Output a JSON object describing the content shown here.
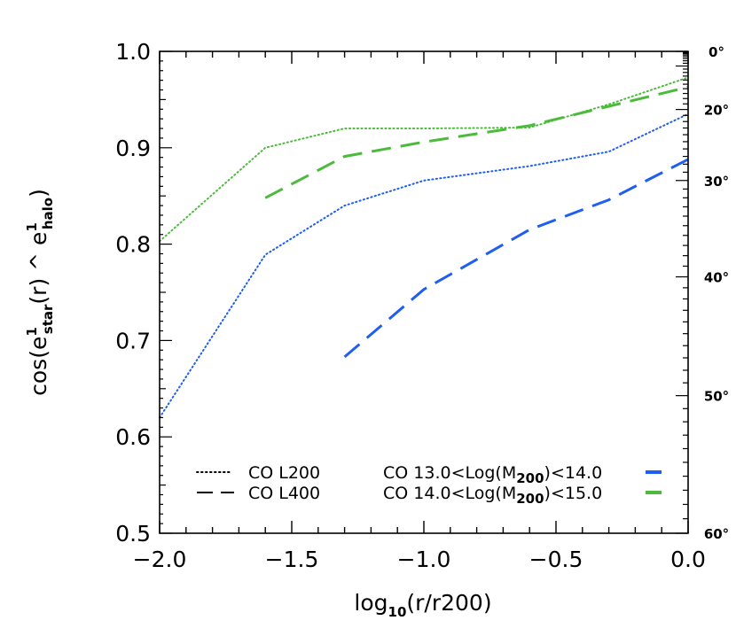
{
  "chart_data": {
    "type": "line",
    "xlabel": {
      "main": "log",
      "sub": "10",
      "rest": "(r/r200)"
    },
    "ylabel": {
      "p1": "cos(e",
      "star_sup": "1",
      "star_sub": "star",
      "p2": "(r) ^ e",
      "halo_sup": "1",
      "halo_sub": "halo",
      "p3": ")"
    },
    "xlim": [
      -2.0,
      0.0
    ],
    "ylim": [
      0.5,
      1.0
    ],
    "x_ticks": [
      -2.0,
      -1.5,
      -1.0,
      -0.5,
      0.0
    ],
    "x_tick_labels": [
      "−2.0",
      "−1.5",
      "−1.0",
      "−0.5",
      "0.0"
    ],
    "y_ticks": [
      0.5,
      0.6,
      0.7,
      0.8,
      0.9,
      1.0
    ],
    "y_tick_labels": [
      "0.5",
      "0.6",
      "0.7",
      "0.8",
      "0.9",
      "1.0"
    ],
    "right_axis_labels": [
      {
        "deg": 0,
        "text": "0°"
      },
      {
        "deg": 20,
        "text": "20°"
      },
      {
        "deg": 30,
        "text": "30°"
      },
      {
        "deg": 40,
        "text": "40°"
      },
      {
        "deg": 50,
        "text": "50°"
      },
      {
        "deg": 60,
        "text": "60°"
      }
    ],
    "colors": {
      "blue": "#1f5ef0",
      "green": "#4cbb3c",
      "black": "#000000"
    },
    "series": [
      {
        "name": "CO L200 13.0<Log(M200)<14.0",
        "color": "#1f5ef0",
        "style": "dotted",
        "x": [
          -2.0,
          -1.6,
          -1.3,
          -1.0,
          -0.6,
          -0.3,
          0.0
        ],
        "y": [
          0.62,
          0.789,
          0.84,
          0.866,
          0.881,
          0.896,
          0.935
        ]
      },
      {
        "name": "CO L200 14.0<Log(M200)<15.0",
        "color": "#4cbb3c",
        "style": "dotted",
        "x": [
          -2.0,
          -1.6,
          -1.3,
          -1.0,
          -0.6,
          -0.3,
          0.0
        ],
        "y": [
          0.803,
          0.9,
          0.92,
          0.92,
          0.921,
          0.945,
          0.973
        ]
      },
      {
        "name": "CO L400 13.0<Log(M200)<14.0",
        "color": "#1f5ef0",
        "style": "dashed",
        "x": [
          -1.3,
          -1.0,
          -0.6,
          -0.3,
          0.0
        ],
        "y": [
          0.683,
          0.753,
          0.815,
          0.846,
          0.888
        ]
      },
      {
        "name": "CO L400 14.0<Log(M200)<15.0",
        "color": "#4cbb3c",
        "style": "dashed",
        "x": [
          -1.6,
          -1.3,
          -1.0,
          -0.6,
          -0.3,
          0.0
        ],
        "y": [
          0.848,
          0.891,
          0.906,
          0.923,
          0.943,
          0.963
        ]
      }
    ],
    "legend": {
      "style_entries": [
        {
          "style": "dotted",
          "label": "CO L200"
        },
        {
          "style": "dashed",
          "label": "CO L400"
        }
      ],
      "mass_entries": [
        {
          "color": "#1f5ef0",
          "pre": "CO 13.0<Log(M",
          "sub": "200",
          "post": ")<14.0"
        },
        {
          "color": "#4cbb3c",
          "pre": "CO 14.0<Log(M",
          "sub": "200",
          "post": ")<15.0"
        }
      ]
    }
  }
}
